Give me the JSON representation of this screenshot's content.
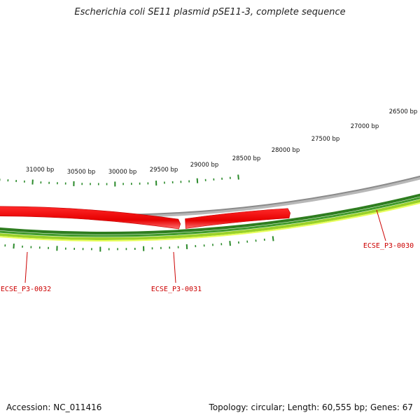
{
  "title": "Escherichia coli SE11 plasmid pSE11-3, complete sequence",
  "footer": {
    "accession": "Accession: NC_011416",
    "topology": "Topology: circular; Length: 60,555 bp; Genes: 67"
  },
  "map": {
    "type": "circular-plasmid-map-zoomed",
    "outer_scale_labels": [
      "26500 bp",
      "27000 bp",
      "27500 bp",
      "28000 bp",
      "28500 bp",
      "29000 bp",
      "29500 bp",
      "30000 bp",
      "30500 bp",
      "31000 bp"
    ],
    "genes": [
      {
        "label": "ECSE_P3-0030",
        "color": "#e60000",
        "strand": "minus"
      },
      {
        "label": "ECSE_P3-0031",
        "color": "#e60000",
        "strand": "minus"
      },
      {
        "label": "ECSE_P3-0032",
        "color": "#e60000",
        "strand": "minus"
      }
    ],
    "partial_feature_color": "#0000ff",
    "backbone_color": "#888888",
    "gc_track_colors": [
      "#2e7d1f",
      "#3f9a2a",
      "#9ad12a",
      "#e8ff5a"
    ],
    "tick_color": "#2a8a2a",
    "label_color": "#cc0000"
  }
}
